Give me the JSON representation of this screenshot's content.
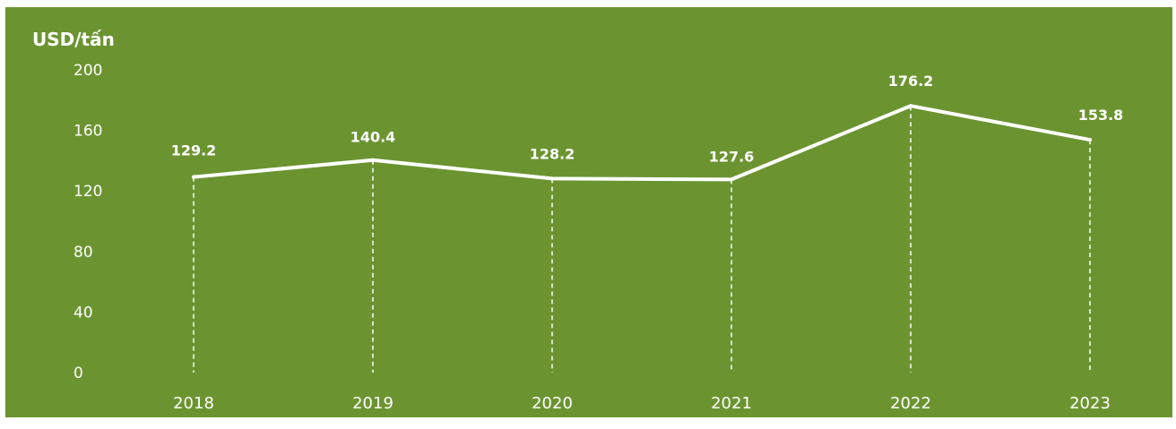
{
  "chart_data": {
    "type": "line",
    "ylabel": "USD/tấn",
    "xlabel": "",
    "categories": [
      "2018",
      "2019",
      "2020",
      "2021",
      "2022",
      "2023"
    ],
    "series": [
      {
        "values": [
          129.2,
          140.4,
          128.2,
          127.6,
          176.2,
          153.8
        ]
      }
    ],
    "data_labels": [
      "129.2",
      "140.4",
      "128.2",
      "127.6",
      "176.2",
      "153.8"
    ],
    "ylim": [
      0,
      200
    ],
    "yticks": [
      0,
      40,
      80,
      120,
      160,
      200
    ],
    "ytick_labels": [
      "0",
      "40",
      "80",
      "120",
      "160",
      "200"
    ],
    "grid": false,
    "drop_lines": "dashed",
    "line_color": "#ffffff",
    "background_color": "#6b9430"
  }
}
